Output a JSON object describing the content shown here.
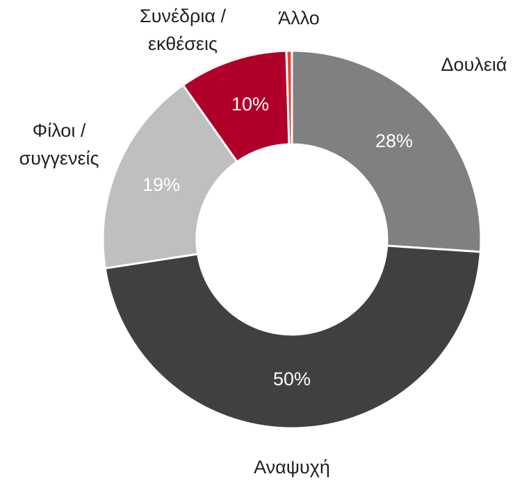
{
  "chart_data": {
    "type": "donut",
    "categories": [
      "Δουλειά",
      "Αναψυχή",
      "Φίλοι /\nσυγγενείς",
      "Συνέδρια /\nεκθέσεις",
      "Άλλο"
    ],
    "values": [
      28,
      50,
      19,
      10,
      0.5
    ],
    "value_labels": [
      "28%",
      "50%",
      "19%",
      "10%",
      null
    ],
    "colors": [
      "#808080",
      "#404040",
      "#bfbfbf",
      "#b0002a",
      "#e8413c"
    ]
  }
}
